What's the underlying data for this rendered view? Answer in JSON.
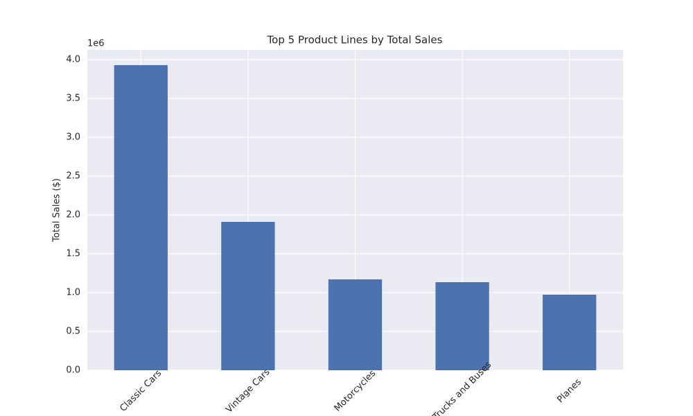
{
  "chart_data": {
    "type": "bar",
    "title": "Top 5 Product Lines by Total Sales",
    "y_label": "Total Sales ($)",
    "y_offset_label": "1e6",
    "categories": [
      "Classic Cars",
      "Vintage Cars",
      "Motorcycles",
      "Trucks and Buses",
      "Planes"
    ],
    "values": [
      3.929,
      1.911,
      1.17,
      1.134,
      0.973
    ],
    "color": "#4c72b0",
    "ylim": [
      0,
      4.125
    ],
    "yticks": [
      {
        "value": 0,
        "label": "0.0"
      },
      0.5,
      {
        "value": 1,
        "label": "1.0"
      },
      1.5,
      {
        "value": 2,
        "label": "2.0"
      },
      2.5,
      {
        "value": 3,
        "label": "3.0"
      },
      3.5,
      {
        "value": 4,
        "label": "4.0"
      }
    ],
    "grid": true
  }
}
